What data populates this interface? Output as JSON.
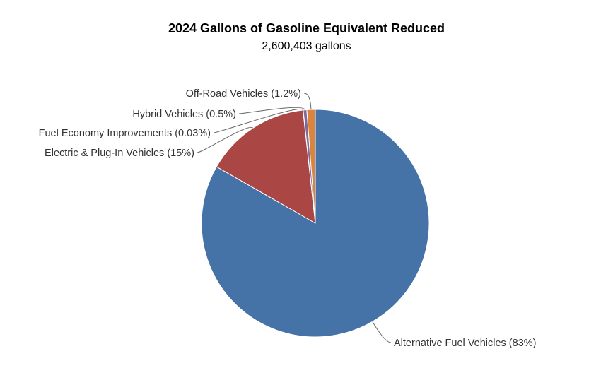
{
  "chart_data": {
    "type": "pie",
    "title": "2024 Gallons of Gasoline Equivalent Reduced",
    "subtitle": "2,600,403 gallons",
    "slices": [
      {
        "label": "Alternative Fuel Vehicles (83%)",
        "value": 83.27,
        "color": "#4572a7"
      },
      {
        "label": "Electric & Plug-In Vehicles (15%)",
        "value": 15.0,
        "color": "#aa4643"
      },
      {
        "label": "Fuel Economy Improvements (0.03%)",
        "value": 0.03,
        "color": "#89a54e"
      },
      {
        "label": "Hybrid Vehicles (0.5%)",
        "value": 0.5,
        "color": "#80699b"
      },
      {
        "label": "Off-Road Vehicles (1.2%)",
        "value": 1.2,
        "color": "#db843d"
      }
    ]
  }
}
